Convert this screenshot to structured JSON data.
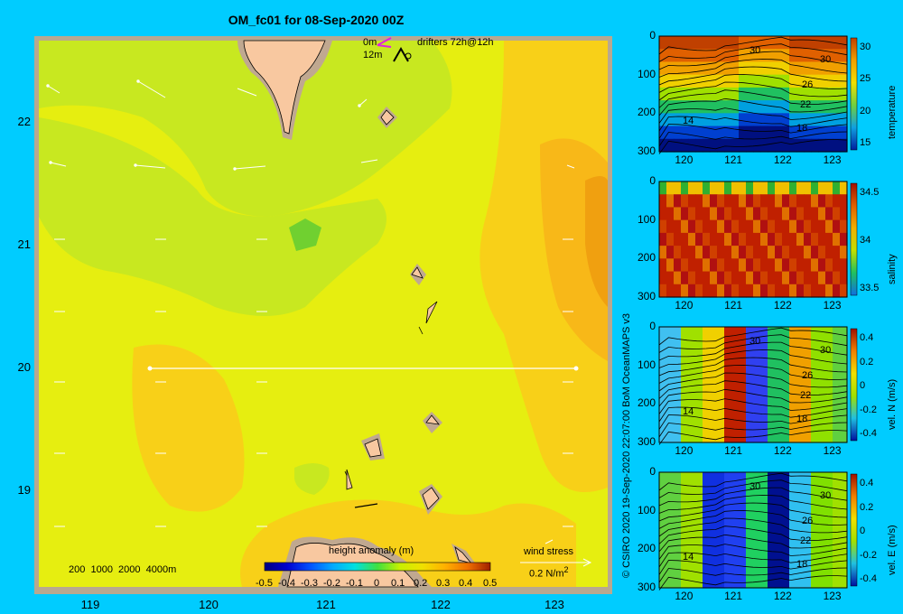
{
  "title": "OM_fc01 for 08-Sep-2020 00Z",
  "map": {
    "lon_ticks": [
      "119",
      "120",
      "121",
      "122",
      "123"
    ],
    "lat_ticks": [
      "22",
      "21",
      "20",
      "19"
    ],
    "legend_drifters": {
      "depth_surface": "0m",
      "depth_12m": "12m",
      "label": "drifters 72h@12h"
    },
    "bathymetry_legend": "200  1000  2000  4000m",
    "colorbar": {
      "label": "height anomaly (m)",
      "ticks": [
        "-0.5",
        "-0.4",
        "-0.3",
        "-0.2",
        "-0.1",
        "0",
        "0.1",
        "0.2",
        "0.3",
        "0.4",
        "0.5"
      ],
      "range": [
        -0.5,
        0.5
      ]
    },
    "wind_stress": {
      "label": "wind stress",
      "scale": "0.2 N/m",
      "scale_exp": "2"
    },
    "section_line_lat": 20
  },
  "credit": "© CSIRO 2020   19-Sep-2020 22:07:00 BoM OceanMAPS v3",
  "panels": [
    {
      "name": "temperature",
      "label": "temperature",
      "x_ticks": [
        "120",
        "121",
        "122",
        "123"
      ],
      "y_ticks": [
        "0",
        "100",
        "200",
        "300"
      ],
      "cbar_ticks": [
        "30",
        "25",
        "20",
        "15"
      ],
      "contour_labels": [
        "30",
        "30",
        "26",
        "22",
        "18",
        "14"
      ]
    },
    {
      "name": "salinity",
      "label": "salinity",
      "x_ticks": [
        "120",
        "121",
        "122",
        "123"
      ],
      "y_ticks": [
        "0",
        "100",
        "200",
        "300"
      ],
      "cbar_ticks": [
        "34.5",
        "34",
        "33.5"
      ],
      "contour_labels": []
    },
    {
      "name": "vel-n",
      "label": "vel. N (m/s)",
      "x_ticks": [
        "120",
        "121",
        "122",
        "123"
      ],
      "y_ticks": [
        "0",
        "100",
        "200",
        "300"
      ],
      "cbar_ticks": [
        "0.4",
        "0.2",
        "0",
        "-0.2",
        "-0.4"
      ],
      "contour_labels": [
        "30",
        "30",
        "26",
        "22",
        "18",
        "14"
      ]
    },
    {
      "name": "vel-e",
      "label": "vel. E (m/s)",
      "x_ticks": [
        "120",
        "121",
        "122",
        "123"
      ],
      "y_ticks": [
        "0",
        "100",
        "200",
        "300"
      ],
      "cbar_ticks": [
        "0.4",
        "0.2",
        "0",
        "-0.2",
        "-0.4"
      ],
      "contour_labels": [
        "30",
        "30",
        "26",
        "22",
        "18",
        "14"
      ]
    }
  ],
  "colors": {
    "background": "#00CCFF",
    "land": "#F8C8A0",
    "shelf": "#C0A890",
    "frame": "#B8A890"
  }
}
